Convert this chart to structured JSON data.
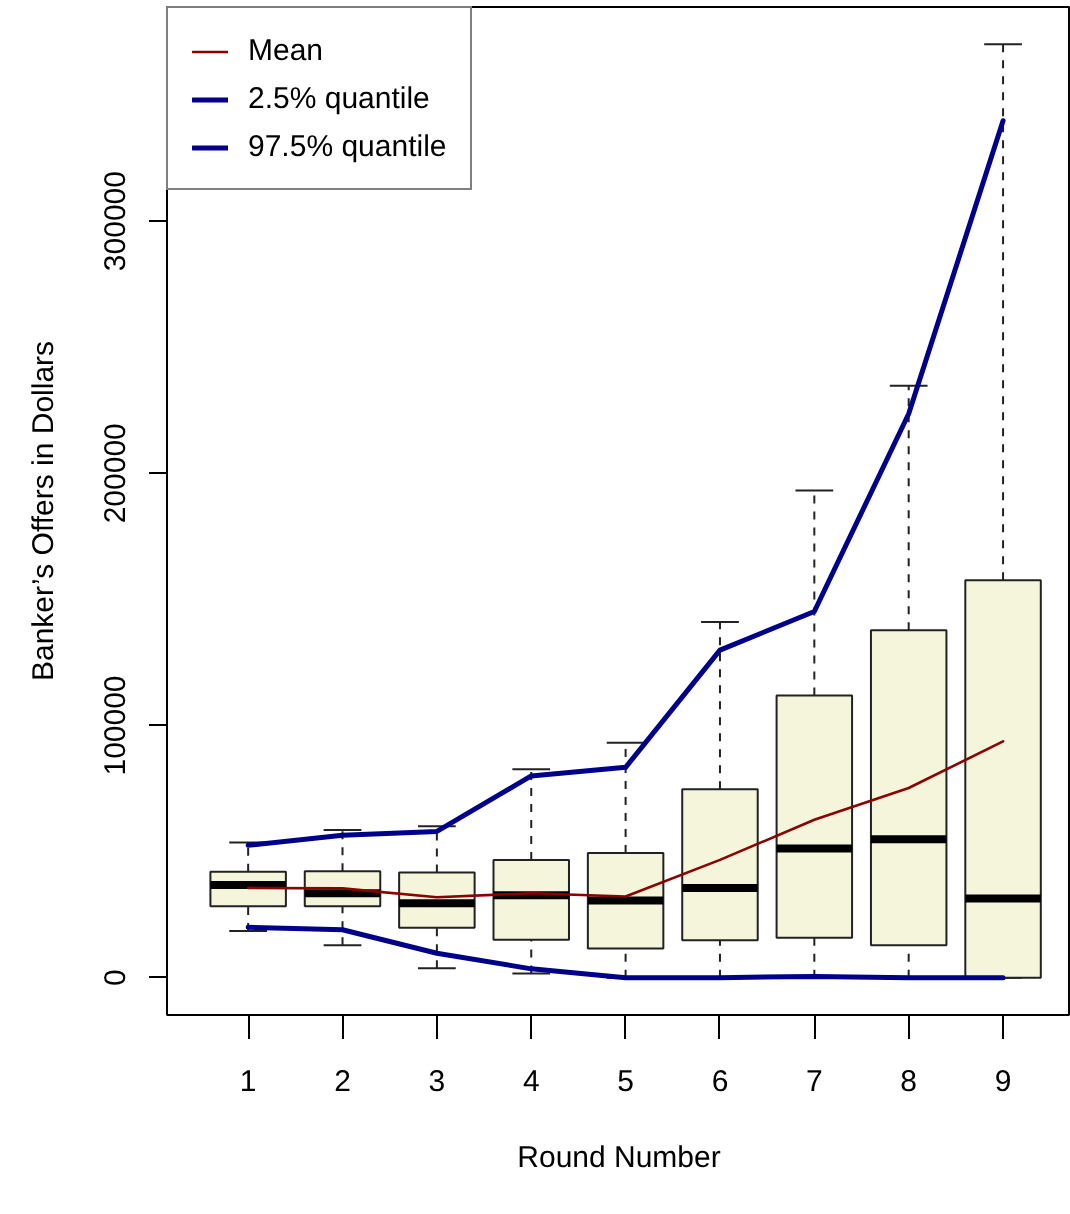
{
  "chart_data": {
    "type": "box",
    "xlabel": "Round Number",
    "ylabel": "Banker’s Offers in Dollars",
    "categories": [
      "1",
      "2",
      "3",
      "4",
      "5",
      "6",
      "7",
      "8",
      "9"
    ],
    "ylim": [
      -14800,
      384900
    ],
    "yticks": [
      0,
      100000,
      200000,
      300000
    ],
    "legend": "top left",
    "series": [
      {
        "color": "#f5f5dc",
        "boxes": [
          {
            "low": 18500,
            "q1": 28300,
            "median": 36700,
            "q3": 42000,
            "high": 53600
          },
          {
            "low": 12900,
            "q1": 28300,
            "median": 33500,
            "q3": 42200,
            "high": 58600
          },
          {
            "low": 3700,
            "q1": 19800,
            "median": 29500,
            "q3": 41700,
            "high": 60000
          },
          {
            "low": 1700,
            "q1": 15000,
            "median": 32700,
            "q3": 46700,
            "high": 82600
          },
          {
            "low": 0,
            "q1": 11600,
            "median": 30600,
            "q3": 49400,
            "high": 93200
          },
          {
            "low": 0,
            "q1": 14800,
            "median": 35600,
            "q3": 74700,
            "high": 141000
          },
          {
            "low": 0,
            "q1": 15800,
            "median": 51200,
            "q3": 111900,
            "high": 193200
          },
          {
            "low": 0,
            "q1": 12900,
            "median": 54900,
            "q3": 137800,
            "high": 234700
          },
          {
            "low": 0,
            "q1": 0,
            "median": 31400,
            "q3": 157600,
            "high": 370100
          }
        ]
      },
      {
        "type": "line",
        "name": "Mean",
        "color": "#8b0000",
        "values": [
          35600,
          35400,
          31900,
          33500,
          32200,
          46700,
          62600,
          75200,
          93700
        ]
      },
      {
        "type": "line",
        "name": "2.5% quantile",
        "color": "#00008b",
        "values": [
          20000,
          19000,
          9700,
          3500,
          0,
          0,
          500,
          0,
          0
        ]
      },
      {
        "type": "line",
        "name": "97.5% quantile",
        "color": "#00008b",
        "values": [
          52500,
          56500,
          58000,
          80000,
          83400,
          129900,
          145200,
          223600,
          339800
        ]
      }
    ]
  }
}
